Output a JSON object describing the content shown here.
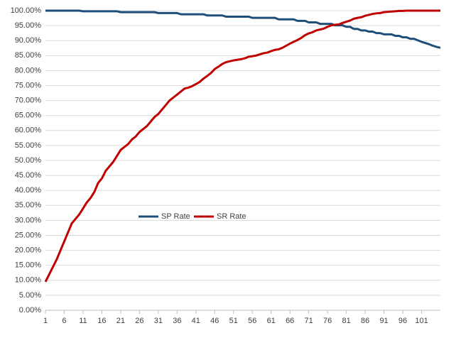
{
  "chart_data": {
    "type": "line",
    "x": [
      1,
      2,
      3,
      4,
      5,
      6,
      7,
      8,
      9,
      10,
      11,
      12,
      13,
      14,
      15,
      16,
      17,
      18,
      19,
      20,
      21,
      22,
      23,
      24,
      25,
      26,
      27,
      28,
      29,
      30,
      31,
      32,
      33,
      34,
      35,
      36,
      37,
      38,
      39,
      40,
      41,
      42,
      43,
      44,
      45,
      46,
      47,
      48,
      49,
      50,
      51,
      52,
      53,
      54,
      55,
      56,
      57,
      58,
      59,
      60,
      61,
      62,
      63,
      64,
      65,
      66,
      67,
      68,
      69,
      70,
      71,
      72,
      73,
      74,
      75,
      76,
      77,
      78,
      79,
      80,
      81,
      82,
      83,
      84,
      85,
      86,
      87,
      88,
      89,
      90,
      91,
      92,
      93,
      94,
      95,
      96,
      97,
      98,
      99,
      100,
      101,
      102,
      103,
      104,
      105,
      106
    ],
    "xlim": [
      1,
      106
    ],
    "xticks": [
      1,
      6,
      11,
      16,
      21,
      26,
      31,
      36,
      41,
      46,
      51,
      56,
      61,
      66,
      71,
      76,
      81,
      86,
      91,
      96,
      101
    ],
    "ylim": [
      0,
      100
    ],
    "yticks": [
      {
        "value": 0,
        "label": "0.00%"
      },
      {
        "value": 5,
        "label": "5.00%"
      },
      {
        "value": 10,
        "label": "10.00%"
      },
      {
        "value": 15,
        "label": "15.00%"
      },
      {
        "value": 20,
        "label": "20.00%"
      },
      {
        "value": 25,
        "label": "25.00%"
      },
      {
        "value": 30,
        "label": "30.00%"
      },
      {
        "value": 35,
        "label": "35.00%"
      },
      {
        "value": 40,
        "label": "40.00%"
      },
      {
        "value": 45,
        "label": "45.00%"
      },
      {
        "value": 50,
        "label": "50.00%"
      },
      {
        "value": 55,
        "label": "55.00%"
      },
      {
        "value": 60,
        "label": "60.00%"
      },
      {
        "value": 65,
        "label": "65.00%"
      },
      {
        "value": 70,
        "label": "70.00%"
      },
      {
        "value": 75,
        "label": "75.00%"
      },
      {
        "value": 80,
        "label": "80.00%"
      },
      {
        "value": 85,
        "label": "85.00%"
      },
      {
        "value": 90,
        "label": "90.00%"
      },
      {
        "value": 95,
        "label": "95.00%"
      },
      {
        "value": 100,
        "label": "100.00%"
      }
    ],
    "grid": true,
    "series": [
      {
        "name": "SP Rate",
        "color": "#1f4e79",
        "values": [
          100,
          100,
          100,
          100,
          100,
          100,
          100,
          100,
          100,
          100,
          99.8,
          99.8,
          99.8,
          99.8,
          99.8,
          99.8,
          99.8,
          99.8,
          99.8,
          99.8,
          99.5,
          99.5,
          99.5,
          99.5,
          99.5,
          99.5,
          99.5,
          99.5,
          99.5,
          99.5,
          99.2,
          99.2,
          99.2,
          99.2,
          99.2,
          99.2,
          98.8,
          98.8,
          98.8,
          98.8,
          98.8,
          98.8,
          98.8,
          98.4,
          98.4,
          98.4,
          98.4,
          98.4,
          98,
          98,
          98,
          98,
          98,
          98,
          98,
          97.6,
          97.6,
          97.6,
          97.6,
          97.6,
          97.6,
          97.6,
          97.1,
          97.1,
          97.1,
          97.1,
          97.1,
          96.6,
          96.6,
          96.6,
          96.1,
          96.1,
          96.1,
          95.6,
          95.6,
          95.6,
          95.6,
          95.1,
          95.1,
          95.1,
          94.6,
          94.6,
          93.9,
          93.9,
          93.4,
          93.4,
          93,
          93,
          92.5,
          92.5,
          92.1,
          92.1,
          92.1,
          91.6,
          91.6,
          91.1,
          91.1,
          90.6,
          90.6,
          90.1,
          89.6,
          89.2,
          88.8,
          88.3,
          87.9,
          87.6
        ]
      },
      {
        "name": "SR Rate",
        "color": "#c00000",
        "values": [
          9.5,
          12,
          14.5,
          17,
          20,
          23,
          26,
          29,
          30.5,
          32,
          34,
          36,
          37.5,
          39.5,
          42.5,
          44,
          46.5,
          48,
          49.5,
          51.5,
          53.5,
          54.5,
          55.5,
          57,
          58,
          59.5,
          60.5,
          61.5,
          63,
          64.5,
          65.5,
          67,
          68.5,
          70,
          71,
          72,
          73,
          74,
          74.3,
          74.8,
          75.5,
          76.2,
          77.3,
          78.2,
          79.2,
          80.5,
          81.3,
          82.2,
          82.8,
          83.1,
          83.4,
          83.6,
          83.8,
          84.1,
          84.6,
          84.8,
          85,
          85.4,
          85.8,
          86,
          86.5,
          86.9,
          87.1,
          87.6,
          88.3,
          89,
          89.6,
          90.2,
          90.9,
          91.8,
          92.4,
          92.8,
          93.4,
          93.7,
          94,
          94.6,
          95.1,
          95.3,
          95.4,
          95.9,
          96.3,
          96.7,
          97.3,
          97.6,
          97.8,
          98.3,
          98.6,
          98.9,
          99.1,
          99.2,
          99.5,
          99.6,
          99.7,
          99.8,
          99.9,
          99.9,
          100,
          100,
          100,
          100,
          100,
          100,
          100,
          100,
          100,
          100
        ]
      }
    ]
  }
}
